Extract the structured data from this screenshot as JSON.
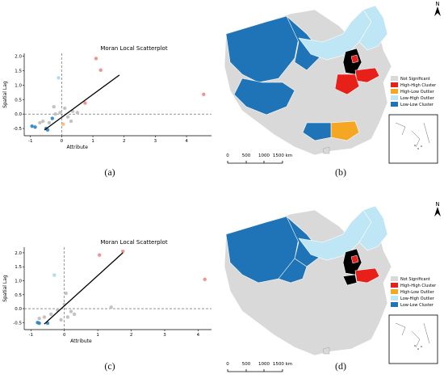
{
  "captions": {
    "a": "(a)",
    "b": "(b)",
    "c": "(c)",
    "d": "(d)"
  },
  "colors": {
    "not_significant": "#d9d9d9",
    "high_high": "#e8201a",
    "high_low": "#f5a623",
    "low_high": "#bfe6f5",
    "low_low": "#1f74b8",
    "black_region": "#000000",
    "point_ns": "#bdbdbd",
    "point_hh": "#f08a80",
    "point_hl": "#f5b866",
    "point_lh": "#a9d8ea",
    "point_ll": "#2f84c0"
  },
  "legend": {
    "items": [
      "Not Significant",
      "High-High Cluster",
      "High-Low Outlier",
      "Low-High Outlier",
      "Low-Low Cluster"
    ]
  },
  "map_scale": {
    "labels": [
      "0",
      "500",
      "1000",
      "1500 km"
    ]
  },
  "north_label": "N",
  "chart_data": [
    {
      "type": "scatter",
      "title": "Moran Local Scatterplot",
      "xlabel": "Attribute",
      "ylabel": "Spatial Lag",
      "xlim": [
        -1.2,
        4.8
      ],
      "ylim": [
        -0.75,
        2.1
      ],
      "xticks": [
        "-1",
        "0",
        "1",
        "2",
        "3",
        "4"
      ],
      "xtick_values": [
        -1,
        0,
        1,
        2,
        3,
        4
      ],
      "yticks": [
        "-0.5",
        "0.0",
        "0.5",
        "1.0",
        "1.5",
        "2.0"
      ],
      "ytick_values": [
        -0.5,
        0.0,
        0.5,
        1.0,
        1.5,
        2.0
      ],
      "fit_line": {
        "x": [
          -0.55,
          1.85
        ],
        "y": [
          -0.55,
          1.35
        ]
      },
      "points": [
        {
          "x": 1.1,
          "y": 1.92,
          "cls": "hh"
        },
        {
          "x": 1.25,
          "y": 1.52,
          "cls": "hh"
        },
        {
          "x": 4.55,
          "y": 0.68,
          "cls": "hh"
        },
        {
          "x": 0.75,
          "y": 0.38,
          "cls": "hh"
        },
        {
          "x": -0.1,
          "y": 1.25,
          "cls": "lh"
        },
        {
          "x": 0.05,
          "y": -0.35,
          "cls": "hl"
        },
        {
          "x": -0.95,
          "y": -0.42,
          "cls": "ll"
        },
        {
          "x": -0.85,
          "y": -0.45,
          "cls": "ll"
        },
        {
          "x": -0.5,
          "y": -0.5,
          "cls": "ll"
        },
        {
          "x": -0.45,
          "y": -0.55,
          "cls": "ll"
        },
        {
          "x": -0.3,
          "y": -0.15,
          "cls": "ll"
        },
        {
          "x": -0.2,
          "y": 0.0,
          "cls": "ns"
        },
        {
          "x": -0.05,
          "y": 0.05,
          "cls": "ns"
        },
        {
          "x": 0.2,
          "y": -0.1,
          "cls": "ns"
        },
        {
          "x": 0.35,
          "y": 0.1,
          "cls": "ns"
        },
        {
          "x": -0.6,
          "y": -0.25,
          "cls": "ns"
        },
        {
          "x": -0.4,
          "y": -0.3,
          "cls": "ns"
        },
        {
          "x": 0.1,
          "y": 0.2,
          "cls": "ns"
        },
        {
          "x": 0.5,
          "y": 0.05,
          "cls": "ns"
        },
        {
          "x": -0.25,
          "y": 0.25,
          "cls": "ns"
        },
        {
          "x": 0.3,
          "y": -0.25,
          "cls": "ns"
        },
        {
          "x": -0.7,
          "y": -0.3,
          "cls": "ns"
        }
      ]
    },
    {
      "type": "scatter",
      "title": "Moran Local Scatterplot",
      "xlabel": "Attribute",
      "ylabel": "Spatial Lag",
      "xlim": [
        -1.2,
        4.4
      ],
      "ylim": [
        -0.75,
        2.2
      ],
      "xticks": [
        "-1",
        "0",
        "1",
        "2",
        "3",
        "4"
      ],
      "xtick_values": [
        -1,
        0,
        1,
        2,
        3,
        4
      ],
      "yticks": [
        "-0.5",
        "0.0",
        "0.5",
        "1.0",
        "1.5",
        "2.0"
      ],
      "ytick_values": [
        -0.5,
        0.0,
        0.5,
        1.0,
        1.5,
        2.0
      ],
      "fit_line": {
        "x": [
          -0.6,
          1.75
        ],
        "y": [
          -0.55,
          2.0
        ]
      },
      "points": [
        {
          "x": 1.75,
          "y": 2.05,
          "cls": "hh"
        },
        {
          "x": 1.05,
          "y": 1.92,
          "cls": "hh"
        },
        {
          "x": 4.2,
          "y": 1.05,
          "cls": "hh"
        },
        {
          "x": -0.3,
          "y": 1.2,
          "cls": "lh"
        },
        {
          "x": -0.8,
          "y": -0.5,
          "cls": "ll"
        },
        {
          "x": -0.75,
          "y": -0.52,
          "cls": "ll"
        },
        {
          "x": -0.5,
          "y": -0.52,
          "cls": "ll"
        },
        {
          "x": -0.6,
          "y": -0.3,
          "cls": "ns"
        },
        {
          "x": -0.4,
          "y": -0.2,
          "cls": "ns"
        },
        {
          "x": -0.2,
          "y": -0.05,
          "cls": "ns"
        },
        {
          "x": 0.0,
          "y": 0.15,
          "cls": "ns"
        },
        {
          "x": 0.2,
          "y": -0.1,
          "cls": "ns"
        },
        {
          "x": 1.4,
          "y": 0.05,
          "cls": "ns"
        },
        {
          "x": 0.05,
          "y": 0.55,
          "cls": "ns"
        },
        {
          "x": -0.75,
          "y": -0.35,
          "cls": "ns"
        },
        {
          "x": 0.1,
          "y": -0.3,
          "cls": "ns"
        },
        {
          "x": -0.1,
          "y": -0.4,
          "cls": "ns"
        },
        {
          "x": 0.3,
          "y": -0.2,
          "cls": "ns"
        }
      ]
    }
  ]
}
